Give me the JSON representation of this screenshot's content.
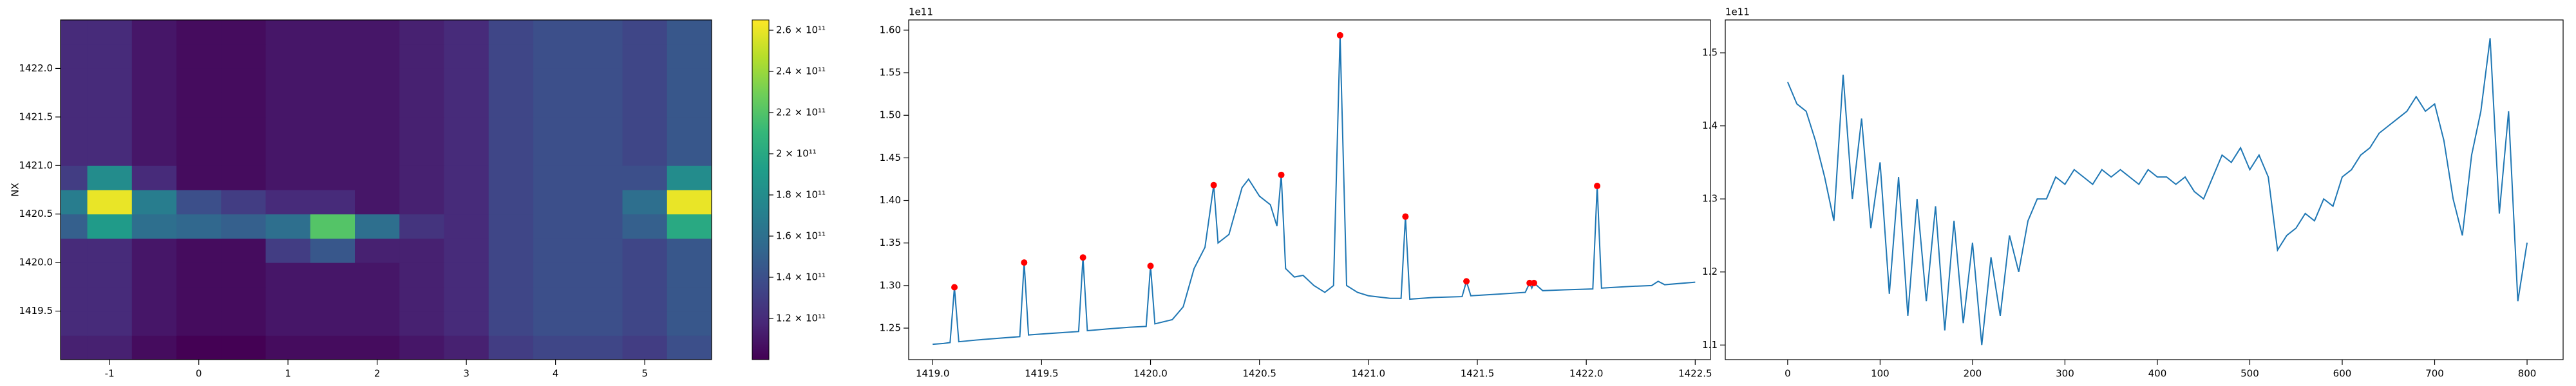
{
  "chart_data": [
    {
      "type": "heatmap",
      "ylabel": "NX",
      "colormap": "viridis",
      "x_edges": [
        -1.55,
        -1.25,
        -0.75,
        -0.25,
        0.25,
        0.75,
        1.25,
        1.75,
        2.25,
        2.75,
        3.25,
        3.75,
        4.25,
        4.75,
        5.25,
        5.75
      ],
      "y_edges": [
        1419.0,
        1419.25,
        1419.5,
        1419.75,
        1420.0,
        1420.25,
        1420.5,
        1420.75,
        1421.0,
        1421.25,
        1421.5,
        1421.75,
        1422.0,
        1422.25,
        1422.5
      ],
      "values": [
        [
          115000000000.0,
          115000000000.0,
          105000000000.0,
          100000000000.0,
          100000000000.0,
          105000000000.0,
          105000000000.0,
          105000000000.0,
          110000000000.0,
          115000000000.0,
          130000000000.0,
          135000000000.0,
          135000000000.0,
          130000000000.0,
          140000000000.0
        ],
        [
          120000000000.0,
          120000000000.0,
          110000000000.0,
          105000000000.0,
          105000000000.0,
          110000000000.0,
          110000000000.0,
          110000000000.0,
          115000000000.0,
          120000000000.0,
          135000000000.0,
          140000000000.0,
          140000000000.0,
          135000000000.0,
          145000000000.0
        ],
        [
          120000000000.0,
          120000000000.0,
          110000000000.0,
          105000000000.0,
          105000000000.0,
          110000000000.0,
          110000000000.0,
          110000000000.0,
          115000000000.0,
          120000000000.0,
          135000000000.0,
          140000000000.0,
          140000000000.0,
          135000000000.0,
          145000000000.0
        ],
        [
          120000000000.0,
          120000000000.0,
          110000000000.0,
          105000000000.0,
          105000000000.0,
          110000000000.0,
          110000000000.0,
          110000000000.0,
          115000000000.0,
          120000000000.0,
          135000000000.0,
          140000000000.0,
          140000000000.0,
          135000000000.0,
          145000000000.0
        ],
        [
          120000000000.0,
          120000000000.0,
          110000000000.0,
          105000000000.0,
          105000000000.0,
          130000000000.0,
          145000000000.0,
          115000000000.0,
          115000000000.0,
          120000000000.0,
          135000000000.0,
          140000000000.0,
          140000000000.0,
          135000000000.0,
          145000000000.0
        ],
        [
          150000000000.0,
          190000000000.0,
          160000000000.0,
          155000000000.0,
          150000000000.0,
          160000000000.0,
          220000000000.0,
          160000000000.0,
          125000000000.0,
          120000000000.0,
          135000000000.0,
          140000000000.0,
          140000000000.0,
          150000000000.0,
          200000000000.0
        ],
        [
          170000000000.0,
          260000000000.0,
          170000000000.0,
          140000000000.0,
          130000000000.0,
          120000000000.0,
          120000000000.0,
          110000000000.0,
          115000000000.0,
          120000000000.0,
          135000000000.0,
          140000000000.0,
          140000000000.0,
          160000000000.0,
          260000000000.0
        ],
        [
          130000000000.0,
          180000000000.0,
          120000000000.0,
          105000000000.0,
          105000000000.0,
          110000000000.0,
          110000000000.0,
          110000000000.0,
          115000000000.0,
          120000000000.0,
          135000000000.0,
          140000000000.0,
          140000000000.0,
          140000000000.0,
          180000000000.0
        ],
        [
          120000000000.0,
          120000000000.0,
          110000000000.0,
          105000000000.0,
          105000000000.0,
          110000000000.0,
          110000000000.0,
          110000000000.0,
          115000000000.0,
          120000000000.0,
          135000000000.0,
          140000000000.0,
          140000000000.0,
          135000000000.0,
          145000000000.0
        ],
        [
          120000000000.0,
          120000000000.0,
          110000000000.0,
          105000000000.0,
          105000000000.0,
          110000000000.0,
          110000000000.0,
          110000000000.0,
          115000000000.0,
          120000000000.0,
          135000000000.0,
          140000000000.0,
          140000000000.0,
          135000000000.0,
          145000000000.0
        ],
        [
          120000000000.0,
          120000000000.0,
          110000000000.0,
          105000000000.0,
          105000000000.0,
          110000000000.0,
          110000000000.0,
          110000000000.0,
          115000000000.0,
          120000000000.0,
          135000000000.0,
          140000000000.0,
          140000000000.0,
          135000000000.0,
          145000000000.0
        ],
        [
          120000000000.0,
          120000000000.0,
          110000000000.0,
          105000000000.0,
          105000000000.0,
          110000000000.0,
          110000000000.0,
          110000000000.0,
          115000000000.0,
          120000000000.0,
          135000000000.0,
          140000000000.0,
          140000000000.0,
          135000000000.0,
          145000000000.0
        ],
        [
          120000000000.0,
          120000000000.0,
          110000000000.0,
          105000000000.0,
          105000000000.0,
          110000000000.0,
          110000000000.0,
          110000000000.0,
          115000000000.0,
          120000000000.0,
          135000000000.0,
          140000000000.0,
          140000000000.0,
          135000000000.0,
          145000000000.0
        ],
        [
          120000000000.0,
          120000000000.0,
          110000000000.0,
          105000000000.0,
          105000000000.0,
          110000000000.0,
          110000000000.0,
          110000000000.0,
          115000000000.0,
          120000000000.0,
          135000000000.0,
          140000000000.0,
          140000000000.0,
          135000000000.0,
          145000000000.0
        ]
      ],
      "xlim": [
        -1.55,
        5.75
      ],
      "ylim": [
        1419.0,
        1422.5
      ],
      "xticks": [
        -1,
        0,
        1,
        2,
        3,
        4,
        5
      ],
      "yticks": [
        1419.5,
        {
          "value": 1420,
          "label": "1420.0"
        },
        1420.5,
        {
          "value": 1421,
          "label": "1421.0"
        },
        1421.5,
        {
          "value": 1422,
          "label": "1422.0"
        }
      ],
      "colorbar": {
        "lim": [
          100000000000.0,
          265000000000.0
        ],
        "ticks": [
          {
            "value": 120000000000.0,
            "label": "1.2 × 10¹¹"
          },
          {
            "value": 140000000000.0,
            "label": "1.4 × 10¹¹"
          },
          {
            "value": 160000000000.0,
            "label": "1.6 × 10¹¹"
          },
          {
            "value": 180000000000.0,
            "label": "1.8 × 10¹¹"
          },
          {
            "value": 200000000000.0,
            "label": "2 × 10¹¹"
          },
          {
            "value": 220000000000.0,
            "label": "2.2 × 10¹¹"
          },
          {
            "value": 240000000000.0,
            "label": "2.4 × 10¹¹"
          },
          {
            "value": 260000000000.0,
            "label": "2.6 × 10¹¹"
          }
        ]
      }
    },
    {
      "type": "line",
      "offset_label": "1e11",
      "xlim": [
        1418.89,
        1422.57
      ],
      "ylim": [
        1.213,
        1.612
      ],
      "xticks": [
        {
          "value": 1419,
          "label": "1419.0"
        },
        1419.5,
        {
          "value": 1420,
          "label": "1420.0"
        },
        1420.5,
        {
          "value": 1421,
          "label": "1421.0"
        },
        1421.5,
        {
          "value": 1422,
          "label": "1422.0"
        },
        1422.5
      ],
      "yticks": [
        1.25,
        {
          "value": 1.3,
          "label": "1.30"
        },
        1.35,
        {
          "value": 1.4,
          "label": "1.40"
        },
        1.45,
        {
          "value": 1.5,
          "label": "1.50"
        },
        1.55,
        {
          "value": 1.6,
          "label": "1.60"
        }
      ],
      "series": [
        {
          "kind": "line",
          "color": "#1f77b4",
          "x": [
            1419.0,
            1419.05,
            1419.08,
            1419.1,
            1419.12,
            1419.2,
            1419.3,
            1419.4,
            1419.42,
            1419.44,
            1419.55,
            1419.67,
            1419.69,
            1419.71,
            1419.8,
            1419.9,
            1419.98,
            1420.0,
            1420.02,
            1420.1,
            1420.15,
            1420.2,
            1420.25,
            1420.29,
            1420.31,
            1420.36,
            1420.42,
            1420.45,
            1420.5,
            1420.55,
            1420.58,
            1420.6,
            1420.62,
            1420.66,
            1420.7,
            1420.75,
            1420.8,
            1420.84,
            1420.87,
            1420.9,
            1420.95,
            1421.0,
            1421.1,
            1421.15,
            1421.17,
            1421.19,
            1421.3,
            1421.43,
            1421.45,
            1421.47,
            1421.6,
            1421.72,
            1421.74,
            1421.75,
            1421.76,
            1421.8,
            1421.9,
            1422.03,
            1422.05,
            1422.07,
            1422.2,
            1422.3,
            1422.33,
            1422.36,
            1422.5
          ],
          "values": [
            1.231,
            1.232,
            1.233,
            1.298,
            1.234,
            1.236,
            1.238,
            1.24,
            1.327,
            1.242,
            1.244,
            1.246,
            1.333,
            1.247,
            1.249,
            1.251,
            1.252,
            1.323,
            1.255,
            1.26,
            1.275,
            1.32,
            1.345,
            1.418,
            1.35,
            1.36,
            1.415,
            1.425,
            1.405,
            1.395,
            1.37,
            1.43,
            1.32,
            1.31,
            1.312,
            1.3,
            1.292,
            1.3,
            1.594,
            1.3,
            1.292,
            1.288,
            1.285,
            1.285,
            1.381,
            1.284,
            1.286,
            1.287,
            1.305,
            1.288,
            1.29,
            1.292,
            1.303,
            1.297,
            1.303,
            1.294,
            1.295,
            1.296,
            1.417,
            1.297,
            1.299,
            1.3,
            1.305,
            1.301,
            1.304
          ]
        },
        {
          "kind": "markers",
          "color": "#ff0000",
          "x": [
            1419.1,
            1419.42,
            1419.69,
            1420.0,
            1420.29,
            1420.6,
            1420.87,
            1421.17,
            1421.45,
            1421.74,
            1421.76,
            1422.05
          ],
          "values": [
            1.298,
            1.327,
            1.333,
            1.323,
            1.418,
            1.43,
            1.594,
            1.381,
            1.305,
            1.303,
            1.303,
            1.417
          ]
        }
      ]
    },
    {
      "type": "line",
      "offset_label": "1e11",
      "xlim": [
        -67.5,
        839
      ],
      "ylim": [
        1.08,
        1.545
      ],
      "xticks": [
        0,
        100,
        200,
        300,
        400,
        500,
        600,
        700,
        800
      ],
      "yticks": [
        1.1,
        1.2,
        1.3,
        1.4,
        1.5
      ],
      "series": [
        {
          "kind": "line",
          "color": "#1f77b4",
          "x": [
            0,
            10,
            20,
            30,
            40,
            50,
            60,
            70,
            80,
            90,
            100,
            110,
            120,
            130,
            140,
            150,
            160,
            170,
            180,
            190,
            200,
            210,
            220,
            230,
            240,
            250,
            260,
            270,
            280,
            290,
            300,
            310,
            320,
            330,
            340,
            350,
            360,
            370,
            380,
            390,
            400,
            410,
            420,
            430,
            440,
            450,
            460,
            470,
            480,
            490,
            500,
            510,
            520,
            530,
            540,
            550,
            560,
            570,
            580,
            590,
            600,
            610,
            620,
            630,
            640,
            650,
            660,
            670,
            680,
            690,
            700,
            710,
            720,
            730,
            740,
            750,
            760,
            770,
            780,
            790,
            800
          ],
          "values": [
            1.46,
            1.43,
            1.42,
            1.38,
            1.33,
            1.27,
            1.47,
            1.3,
            1.41,
            1.26,
            1.35,
            1.17,
            1.33,
            1.14,
            1.3,
            1.16,
            1.29,
            1.12,
            1.27,
            1.13,
            1.24,
            1.1,
            1.22,
            1.14,
            1.25,
            1.2,
            1.27,
            1.3,
            1.3,
            1.33,
            1.32,
            1.34,
            1.33,
            1.32,
            1.34,
            1.33,
            1.34,
            1.33,
            1.32,
            1.34,
            1.33,
            1.33,
            1.32,
            1.33,
            1.31,
            1.3,
            1.33,
            1.36,
            1.35,
            1.37,
            1.34,
            1.36,
            1.33,
            1.23,
            1.25,
            1.26,
            1.28,
            1.27,
            1.3,
            1.29,
            1.33,
            1.34,
            1.36,
            1.37,
            1.39,
            1.4,
            1.41,
            1.42,
            1.44,
            1.42,
            1.43,
            1.38,
            1.3,
            1.25,
            1.36,
            1.42,
            1.52,
            1.28,
            1.42,
            1.16,
            1.24
          ]
        }
      ]
    }
  ]
}
